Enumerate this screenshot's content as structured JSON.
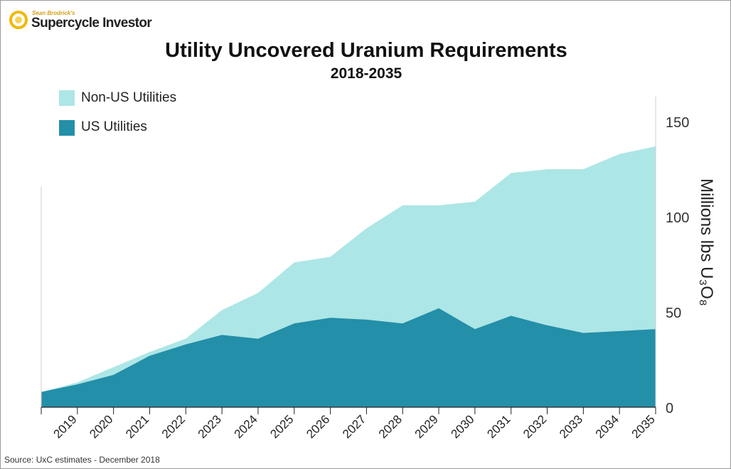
{
  "branding": {
    "byline": "Sean Brodrick's",
    "name": "Supercycle Investor"
  },
  "colors": {
    "non_us": "#ade6e6",
    "us": "#238fa8",
    "logo_gold": "#f2b705"
  },
  "source": "Source: UxC estimates - December 2018",
  "chart_data": {
    "type": "area",
    "stacked": true,
    "title": "Utility Uncovered Uranium Requirements",
    "subtitle": "2018-2035",
    "ylabel": "Millions lbs U₃O₈",
    "ylabel_position": "right",
    "ylim": [
      0,
      165
    ],
    "yticks": [
      0,
      50,
      100,
      150
    ],
    "x": [
      2018,
      2019,
      2020,
      2021,
      2022,
      2023,
      2024,
      2025,
      2026,
      2027,
      2028,
      2029,
      2030,
      2031,
      2032,
      2033,
      2034,
      2035
    ],
    "xtick_labels": [
      "2019",
      "2020",
      "2021",
      "2022",
      "2023",
      "2024",
      "2025",
      "2026",
      "2027",
      "2028",
      "2029",
      "2030",
      "2031",
      "2032",
      "2033",
      "2034",
      "2035"
    ],
    "legend_position": "top-left",
    "series": [
      {
        "name": "US Utilities",
        "color": "#238fa8",
        "values": [
          8,
          12,
          17,
          27,
          33,
          38,
          36,
          44,
          47,
          46,
          44,
          52,
          41,
          48,
          43,
          39,
          40,
          41
        ]
      },
      {
        "name": "Non-US Utilities",
        "color": "#ade6e6",
        "values": [
          0,
          1,
          4,
          2,
          3,
          13,
          24,
          32,
          32,
          48,
          62,
          54,
          67,
          75,
          82,
          86,
          93,
          96
        ]
      }
    ]
  }
}
